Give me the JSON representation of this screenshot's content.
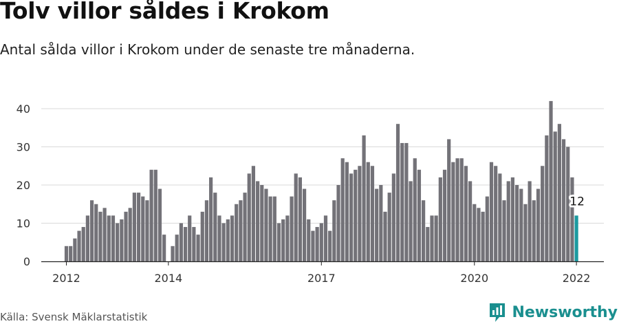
{
  "header": {
    "title": "Tolv villor såldes i Krokom",
    "subtitle": "Antal sålda villor i Krokom under de senaste tre månaderna."
  },
  "footer": {
    "source": "Källa: Svensk Mäklarstatistik",
    "brand": "Newsworthy"
  },
  "colors": {
    "bar": "#737278",
    "highlight": "#1b9aa0",
    "grid": "#d9d9d9",
    "brand": "#1a8f8f"
  },
  "chart_data": {
    "type": "bar",
    "x_ticks": [
      {
        "label": "2012",
        "index": 0
      },
      {
        "label": "2014",
        "index": 24
      },
      {
        "label": "2017",
        "index": 60
      },
      {
        "label": "2020",
        "index": 96
      },
      {
        "label": "2022",
        "index": 120
      }
    ],
    "y_ticks": [
      0,
      10,
      20,
      30,
      40
    ],
    "ylim": [
      0,
      42
    ],
    "grid": true,
    "values": [
      4,
      4,
      6,
      8,
      9,
      12,
      16,
      15,
      13,
      14,
      12,
      12,
      10,
      11,
      13,
      14,
      18,
      18,
      17,
      16,
      24,
      24,
      19,
      7,
      0,
      4,
      7,
      10,
      9,
      12,
      9,
      7,
      13,
      16,
      22,
      18,
      12,
      10,
      11,
      12,
      15,
      16,
      18,
      23,
      25,
      21,
      20,
      19,
      17,
      17,
      10,
      11,
      12,
      17,
      23,
      22,
      19,
      11,
      8,
      9,
      10,
      12,
      8,
      16,
      20,
      27,
      26,
      23,
      24,
      25,
      33,
      26,
      25,
      19,
      20,
      13,
      18,
      23,
      36,
      31,
      31,
      21,
      27,
      24,
      16,
      9,
      12,
      12,
      22,
      24,
      32,
      26,
      27,
      27,
      25,
      21,
      15,
      14,
      13,
      17,
      26,
      25,
      23,
      16,
      21,
      22,
      20,
      19,
      15,
      21,
      16,
      19,
      25,
      33,
      42,
      34,
      36,
      32,
      30,
      22,
      12
    ],
    "highlight_index": 120,
    "highlight_label": "12"
  }
}
